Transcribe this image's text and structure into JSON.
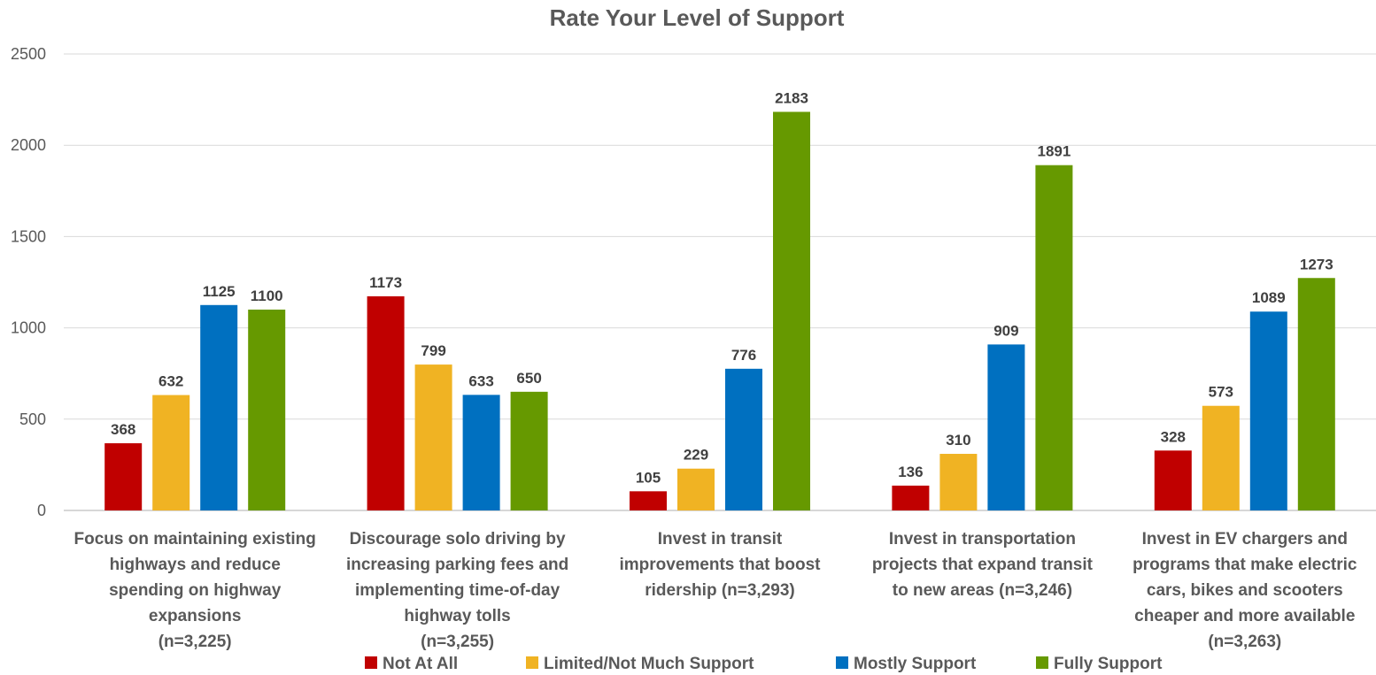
{
  "chart_data": {
    "type": "bar",
    "title": "Rate Your Level of Support",
    "xlabel": "",
    "ylabel": "",
    "ylim": [
      0,
      2500
    ],
    "yticks": [
      0,
      500,
      1000,
      1500,
      2000,
      2500
    ],
    "grid": true,
    "legend_position": "bottom",
    "categories": [
      [
        "Focus on maintaining existing",
        "highways and reduce",
        "spending on highway",
        "expansions",
        "(n=3,225)"
      ],
      [
        "Discourage solo driving by",
        "increasing parking fees and",
        "implementing time-of-day",
        "highway tolls",
        "(n=3,255)"
      ],
      [
        "Invest in transit",
        "improvements that boost",
        "ridership (n=3,293)"
      ],
      [
        "Invest in transportation",
        "projects that expand transit",
        "to new areas (n=3,246)"
      ],
      [
        "Invest in EV chargers and",
        "programs that make electric",
        "cars, bikes and scooters",
        "cheaper and more available",
        "(n=3,263)"
      ]
    ],
    "series": [
      {
        "name": "Not At All",
        "color": "#c00000",
        "values": [
          368,
          1173,
          105,
          136,
          328
        ]
      },
      {
        "name": "Limited/Not Much Support",
        "color": "#f0b323",
        "values": [
          632,
          799,
          229,
          310,
          573
        ]
      },
      {
        "name": "Mostly Support",
        "color": "#0070c0",
        "values": [
          1125,
          633,
          776,
          909,
          1089
        ]
      },
      {
        "name": "Fully Support",
        "color": "#669900",
        "values": [
          1100,
          650,
          2183,
          1891,
          1273
        ]
      }
    ]
  }
}
